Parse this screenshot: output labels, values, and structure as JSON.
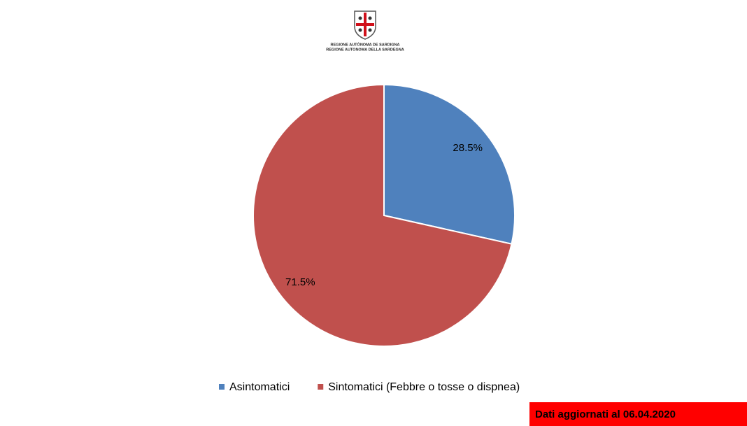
{
  "header": {
    "logo_lines": [
      "REGIONE AUTÒNOMA DE SARDIGNA",
      "REGIONE AUTONOMA DELLA SARDEGNA"
    ]
  },
  "chart_data": {
    "type": "pie",
    "categories": [
      "Asintomatici",
      "Sintomatici (Febbre o tosse o dispnea)"
    ],
    "values": [
      28.5,
      71.5
    ],
    "value_labels": [
      "28.5%",
      "71.5%"
    ],
    "colors": [
      "#4f81bd",
      "#c0504d"
    ],
    "legend": "bottom"
  },
  "footer": {
    "note": "Dati aggiornati al 06.04.2020"
  }
}
